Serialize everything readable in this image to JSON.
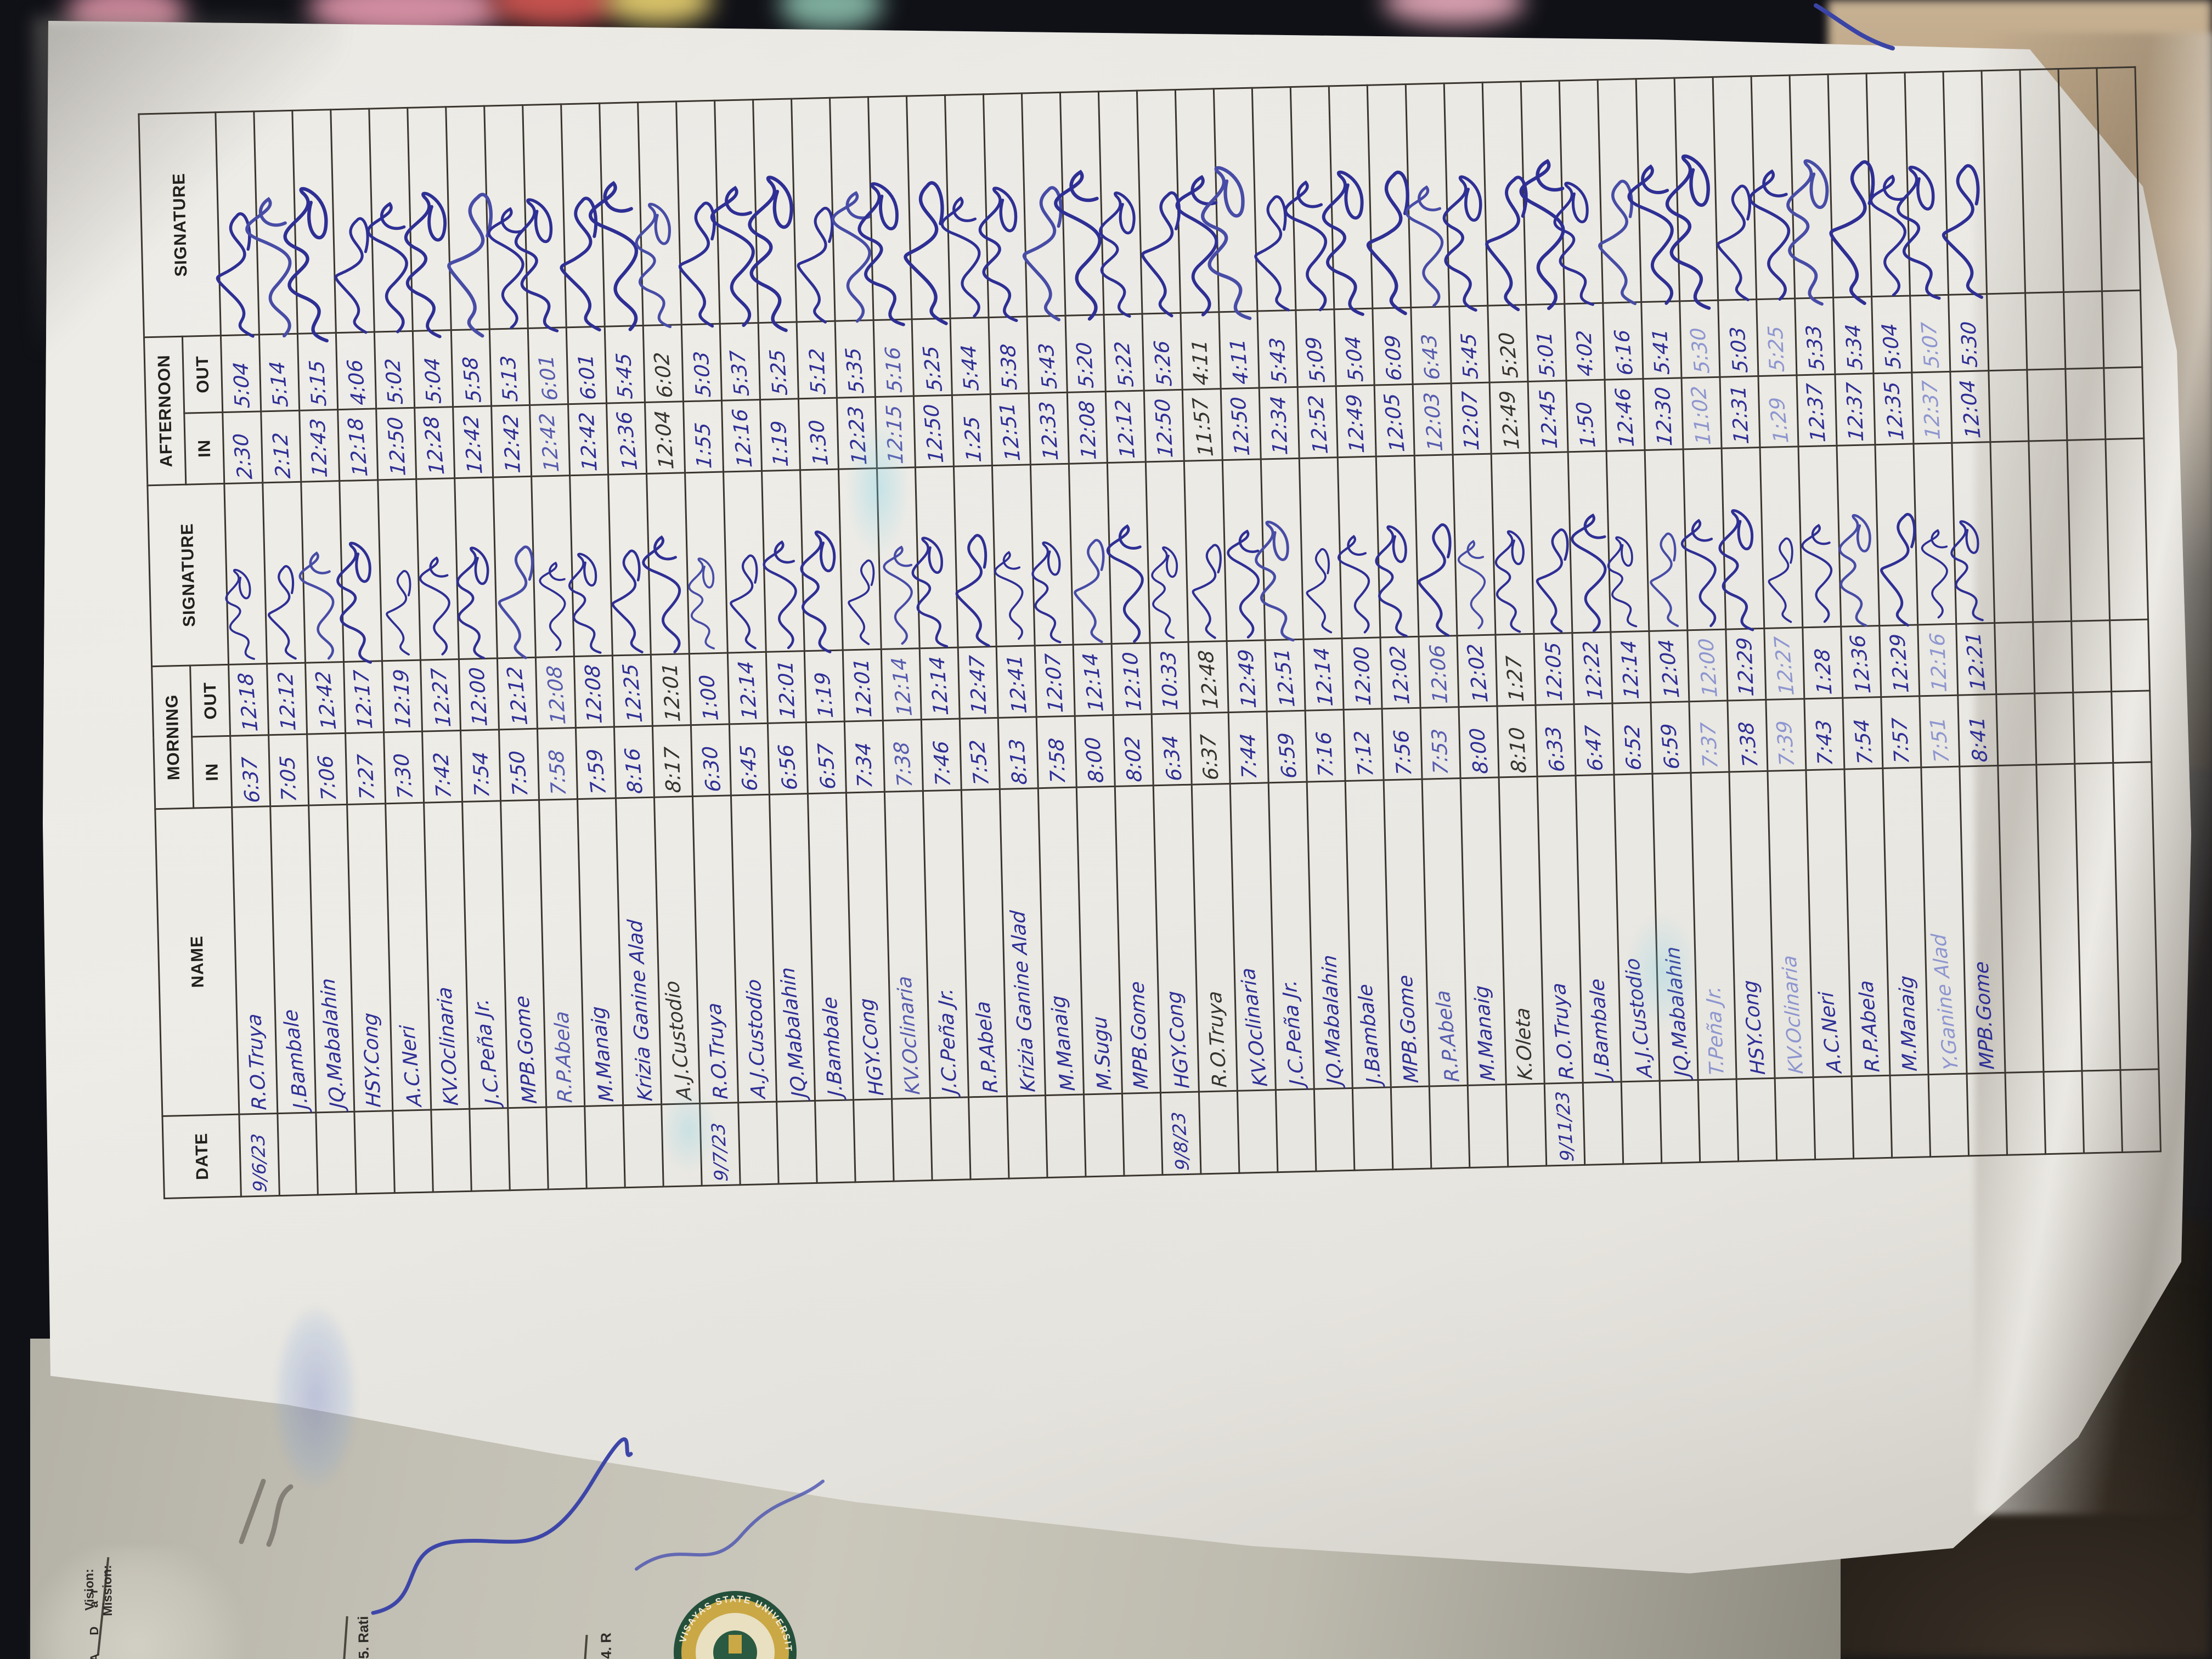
{
  "table": {
    "headers": {
      "date": "DATE",
      "name": "NAME",
      "morning": "MORNING",
      "afternoon": "AFTERNOON",
      "in": "IN",
      "out": "OUT",
      "signature": "SIGNATURE"
    },
    "blocks": [
      {
        "date": "9/6/23",
        "rows": [
          {
            "name": "R.O.Truya",
            "am_in": "6:37",
            "am_out": "12:18",
            "pm_in": "2:30",
            "pm_out": "5:04"
          },
          {
            "name": "J.Bambale",
            "am_in": "7:05",
            "am_out": "12:12",
            "pm_in": "2:12",
            "pm_out": "5:14"
          },
          {
            "name": "JQ.Mabalahin",
            "am_in": "7:06",
            "am_out": "12:42",
            "pm_in": "12:43",
            "pm_out": "5:15"
          },
          {
            "name": "HSY.Cong",
            "am_in": "7:27",
            "am_out": "12:17",
            "pm_in": "12:18",
            "pm_out": "4:06"
          },
          {
            "name": "A.C.Neri",
            "am_in": "7:30",
            "am_out": "12:19",
            "pm_in": "12:50",
            "pm_out": "5:02"
          },
          {
            "name": "KV.Oclinaria",
            "am_in": "7:42",
            "am_out": "12:27",
            "pm_in": "12:28",
            "pm_out": "5:04"
          },
          {
            "name": "J.C.Peña Jr.",
            "am_in": "7:54",
            "am_out": "12:00",
            "pm_in": "12:42",
            "pm_out": "5:58"
          },
          {
            "name": "MPB.Gome",
            "am_in": "7:50",
            "am_out": "12:12",
            "pm_in": "12:42",
            "pm_out": "5:13"
          },
          {
            "name": "R.P.Abela",
            "am_in": "7:58",
            "am_out": "12:08",
            "pm_in": "12:42",
            "pm_out": "6:01",
            "pen": "lite"
          },
          {
            "name": "M.Manaig",
            "am_in": "7:59",
            "am_out": "12:08",
            "pm_in": "12:42",
            "pm_out": "6:01"
          },
          {
            "name": "Krizia Ganine Alad",
            "am_in": "8:16",
            "am_out": "12:25",
            "pm_in": "12:36",
            "pm_out": "5:45"
          },
          {
            "name": "A.J.Custodio",
            "am_in": "8:17",
            "am_out": "12:01",
            "pm_in": "12:04",
            "pm_out": "6:02",
            "pen": "dark"
          }
        ]
      },
      {
        "date": "9/7/23",
        "rows": [
          {
            "name": "R.O.Truya",
            "am_in": "6:30",
            "am_out": "1:00",
            "pm_in": "1:55",
            "pm_out": "5:03"
          },
          {
            "name": "A.J.Custodio",
            "am_in": "6:45",
            "am_out": "12:14",
            "pm_in": "12:16",
            "pm_out": "5:37"
          },
          {
            "name": "JQ.Mabalahin",
            "am_in": "6:56",
            "am_out": "12:01",
            "pm_in": "1:19",
            "pm_out": "5:25"
          },
          {
            "name": "J.Bambale",
            "am_in": "6:57",
            "am_out": "1:19",
            "pm_in": "1:30",
            "pm_out": "5:12"
          },
          {
            "name": "HGY.Cong",
            "am_in": "7:34",
            "am_out": "12:01",
            "pm_in": "12:23",
            "pm_out": "5:35"
          },
          {
            "name": "KV.Oclinaria",
            "am_in": "7:38",
            "am_out": "12:14",
            "pm_in": "12:15",
            "pm_out": "5:16",
            "pen": "lite"
          },
          {
            "name": "J.C.Peña Jr.",
            "am_in": "7:46",
            "am_out": "12:14",
            "pm_in": "12:50",
            "pm_out": "5:25"
          },
          {
            "name": "R.P.Abela",
            "am_in": "7:52",
            "am_out": "12:47",
            "pm_in": "1:25",
            "pm_out": "5:44"
          },
          {
            "name": "Krizia Ganine Alad",
            "am_in": "8:13",
            "am_out": "12:41",
            "pm_in": "12:51",
            "pm_out": "5:38"
          },
          {
            "name": "M.Manaig",
            "am_in": "7:58",
            "am_out": "12:07",
            "pm_in": "12:33",
            "pm_out": "5:43"
          },
          {
            "name": "M.Sugu",
            "am_in": "8:00",
            "am_out": "12:14",
            "pm_in": "12:08",
            "pm_out": "5:20"
          },
          {
            "name": "MPB.Gome",
            "am_in": "8:02",
            "am_out": "12:10",
            "pm_in": "12:12",
            "pm_out": "5:22"
          }
        ]
      },
      {
        "date": "9/8/23",
        "rows": [
          {
            "name": "HGY.Cong",
            "am_in": "6:34",
            "am_out": "10:33",
            "pm_in": "12:50",
            "pm_out": "5:26"
          },
          {
            "name": "R.O.Truya",
            "am_in": "6:37",
            "am_out": "12:48",
            "pm_in": "11:57",
            "pm_out": "4:11",
            "pen": "dark"
          },
          {
            "name": "KV.Oclinaria",
            "am_in": "7:44",
            "am_out": "12:49",
            "pm_in": "12:50",
            "pm_out": "4:11"
          },
          {
            "name": "J.C.Peña Jr.",
            "am_in": "6:59",
            "am_out": "12:51",
            "pm_in": "12:34",
            "pm_out": "5:43"
          },
          {
            "name": "JQ.Mabalahin",
            "am_in": "7:16",
            "am_out": "12:14",
            "pm_in": "12:52",
            "pm_out": "5:09"
          },
          {
            "name": "J.Bambale",
            "am_in": "7:12",
            "am_out": "12:00",
            "pm_in": "12:49",
            "pm_out": "5:04"
          },
          {
            "name": "MPB.Gome",
            "am_in": "7:56",
            "am_out": "12:02",
            "pm_in": "12:05",
            "pm_out": "6:09"
          },
          {
            "name": "R.P.Abela",
            "am_in": "7:53",
            "am_out": "12:06",
            "pm_in": "12:03",
            "pm_out": "6:43",
            "pen": "lite"
          },
          {
            "name": "M.Manaig",
            "am_in": "8:00",
            "am_out": "12:02",
            "pm_in": "12:07",
            "pm_out": "5:45"
          },
          {
            "name": "K.Oleta",
            "am_in": "8:10",
            "am_out": "1:27",
            "pm_in": "12:49",
            "pm_out": "5:20",
            "pen": "dark"
          }
        ]
      },
      {
        "date": "9/11/23",
        "rows": [
          {
            "name": "R.O.Truya",
            "am_in": "6:33",
            "am_out": "12:05",
            "pm_in": "12:45",
            "pm_out": "5:01"
          },
          {
            "name": "J.Bambale",
            "am_in": "6:47",
            "am_out": "12:22",
            "pm_in": "1:50",
            "pm_out": "4:02"
          },
          {
            "name": "A.J.Custodio",
            "am_in": "6:52",
            "am_out": "12:14",
            "pm_in": "12:46",
            "pm_out": "6:16"
          },
          {
            "name": "JQ.Mabalahin",
            "am_in": "6:59",
            "am_out": "12:04",
            "pm_in": "12:30",
            "pm_out": "5:41"
          },
          {
            "name": "T.Peña Jr.",
            "am_in": "7:37",
            "am_out": "12:00",
            "pm_in": "11:02",
            "pm_out": "5:30",
            "pen": "faint"
          },
          {
            "name": "HSY.Cong",
            "am_in": "7:38",
            "am_out": "12:29",
            "pm_in": "12:31",
            "pm_out": "5:03"
          },
          {
            "name": "KV.Oclinaria",
            "am_in": "7:39",
            "am_out": "12:27",
            "pm_in": "1:29",
            "pm_out": "5:25",
            "pen": "faint"
          },
          {
            "name": "A.C.Neri",
            "am_in": "7:43",
            "am_out": "1:28",
            "pm_in": "12:37",
            "pm_out": "5:33"
          },
          {
            "name": "R.P.Abela",
            "am_in": "7:54",
            "am_out": "12:36",
            "pm_in": "12:37",
            "pm_out": "5:34"
          },
          {
            "name": "M.Manaig",
            "am_in": "7:57",
            "am_out": "12:29",
            "pm_in": "12:35",
            "pm_out": "5:04"
          },
          {
            "name": "Y.Ganine Alad",
            "am_in": "7:51",
            "am_out": "12:16",
            "pm_in": "12:37",
            "pm_out": "5:07",
            "pen": "faint"
          },
          {
            "name": "MPB.Gome",
            "am_in": "8:41",
            "am_out": "12:21",
            "pm_in": "12:04",
            "pm_out": "5:30"
          }
        ]
      }
    ],
    "empty_rows": 4
  },
  "under_page": {
    "vision_label": "Vision:",
    "mission_label": "Mission:",
    "side_letters": "A D ar",
    "item5": "5. Rati",
    "item4": "4. R",
    "seal_text": "VISAYAS STATE UNIVERSITY"
  },
  "colors": {
    "ink_blue": "#2e2f94",
    "ink_faint": "#8d96cf",
    "ink_dark": "#37342f",
    "grid_line": "#3a352e",
    "paper": "#e9e7e2",
    "under_paper": "#c2bfb4",
    "seal_green": "#2a5a42",
    "seal_gold": "#c9a845"
  }
}
